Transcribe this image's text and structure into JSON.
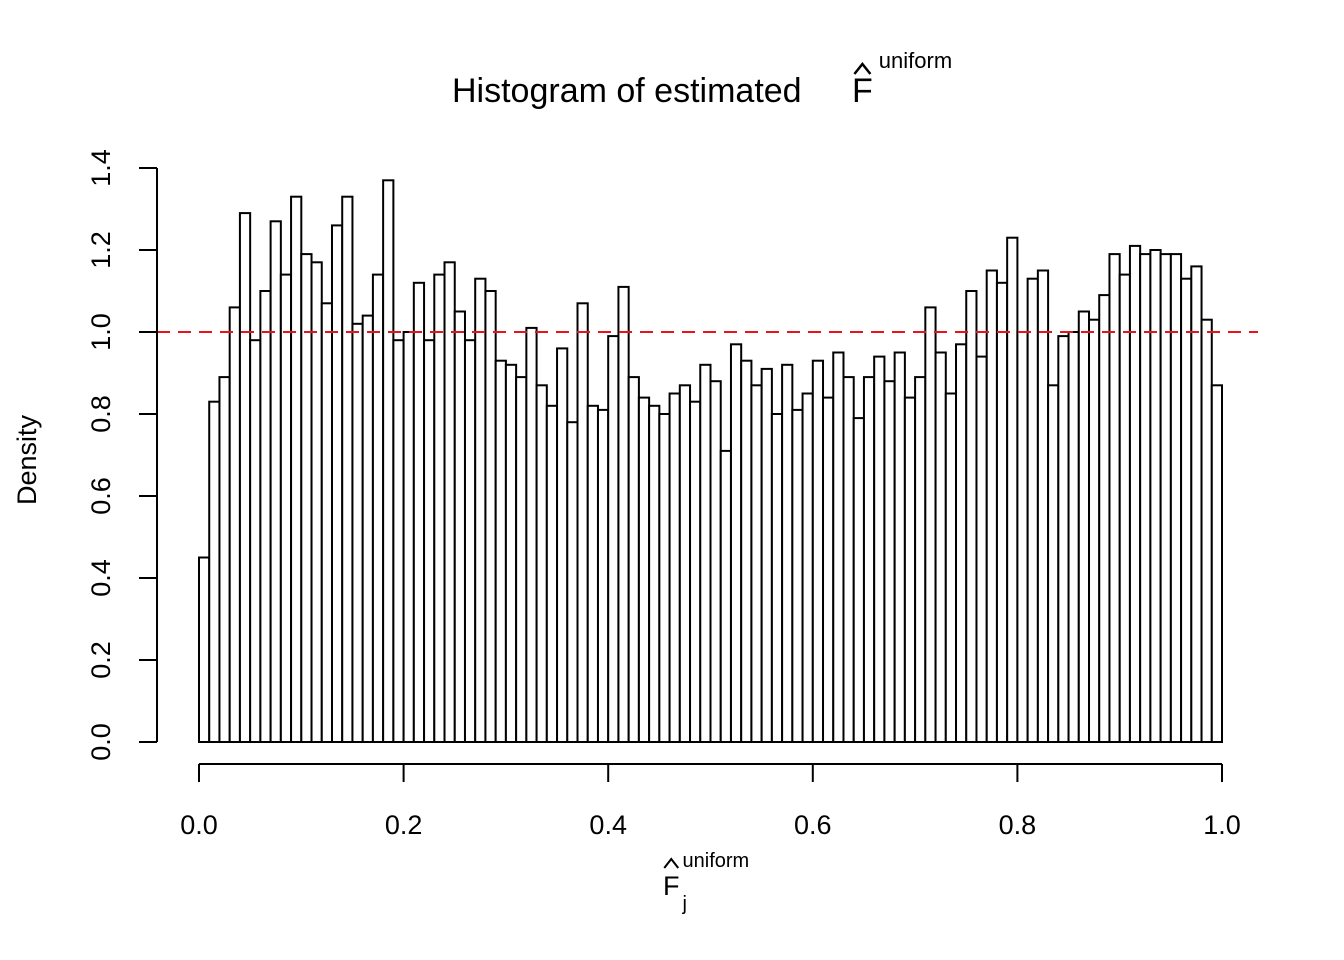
{
  "chart_data": {
    "type": "bar",
    "subtype": "histogram",
    "title": "Histogram of estimated ",
    "title_math": {
      "base": "F",
      "accent": "hat",
      "superscript": "uniform"
    },
    "xlabel_math": {
      "base": "F",
      "accent": "hat",
      "subscript": "j",
      "superscript": "uniform"
    },
    "ylabel": "Density",
    "xlim": [
      0,
      1
    ],
    "ylim": [
      0,
      1.4
    ],
    "xticks": [
      "0.0",
      "0.2",
      "0.4",
      "0.6",
      "0.8",
      "1.0"
    ],
    "yticks": [
      "0.0",
      "0.2",
      "0.4",
      "0.6",
      "0.8",
      "1.0",
      "1.2",
      "1.4"
    ],
    "bin_width": 0.01,
    "values": [
      0.45,
      0.83,
      0.89,
      1.06,
      1.29,
      0.98,
      1.1,
      1.27,
      1.14,
      1.33,
      1.19,
      1.17,
      1.07,
      1.26,
      1.33,
      1.02,
      1.04,
      1.14,
      1.37,
      0.98,
      1.0,
      1.12,
      0.98,
      1.14,
      1.17,
      1.05,
      0.98,
      1.13,
      1.1,
      0.93,
      0.92,
      0.89,
      1.01,
      0.87,
      0.82,
      0.96,
      0.78,
      1.07,
      0.82,
      0.81,
      0.99,
      1.11,
      0.89,
      0.84,
      0.82,
      0.8,
      0.85,
      0.87,
      0.83,
      0.92,
      0.88,
      0.71,
      0.97,
      0.93,
      0.87,
      0.91,
      0.8,
      0.92,
      0.81,
      0.85,
      0.93,
      0.84,
      0.95,
      0.89,
      0.79,
      0.89,
      0.94,
      0.88,
      0.95,
      0.84,
      0.89,
      1.06,
      0.95,
      0.85,
      0.97,
      1.1,
      0.94,
      1.15,
      1.12,
      1.23,
      1.0,
      1.13,
      1.15,
      0.87,
      0.99,
      1.0,
      1.05,
      1.03,
      1.09,
      1.19,
      1.14,
      1.21,
      1.19,
      1.2,
      1.19,
      1.19,
      1.13,
      1.16,
      1.03,
      0.87
    ],
    "reference_line": {
      "y": 1.0,
      "style": "dashed",
      "color": "#e8141c"
    },
    "bar_fill": "#ffffff",
    "bar_stroke": "#000000",
    "grid": false
  }
}
